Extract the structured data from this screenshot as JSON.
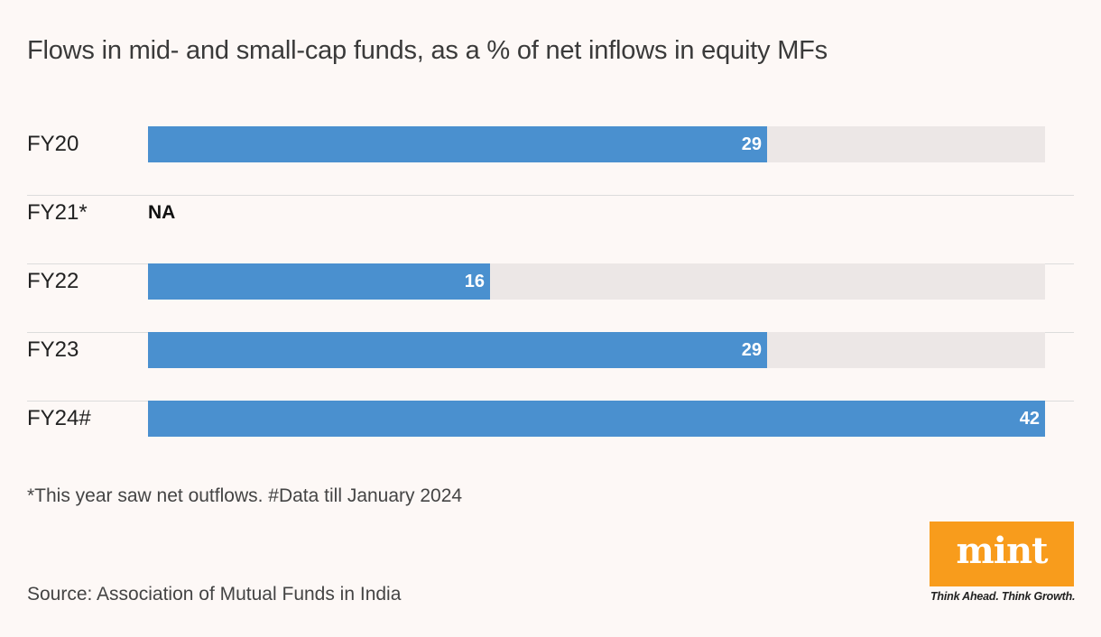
{
  "chart_data": {
    "type": "bar",
    "orientation": "horizontal",
    "title": "Flows in mid- and small-cap funds, as a % of net inflows in equity MFs",
    "categories": [
      "FY20",
      "FY21*",
      "FY22",
      "FY23",
      "FY24#"
    ],
    "values": [
      29,
      null,
      16,
      29,
      42
    ],
    "value_labels": [
      "29",
      "NA",
      "16",
      "29",
      "42"
    ],
    "xlim": [
      0,
      42
    ],
    "xlabel": "",
    "ylabel": "",
    "grid": false,
    "bar_color": "#4a90cf",
    "track_color": "#ece7e6",
    "footnote": "*This year saw net outflows. #Data till January 2024",
    "source": "Source: Association of Mutual Funds in India"
  },
  "branding": {
    "logo_text": "mint",
    "tagline": "Think Ahead. Think Growth.",
    "logo_color": "#f89c1c"
  }
}
